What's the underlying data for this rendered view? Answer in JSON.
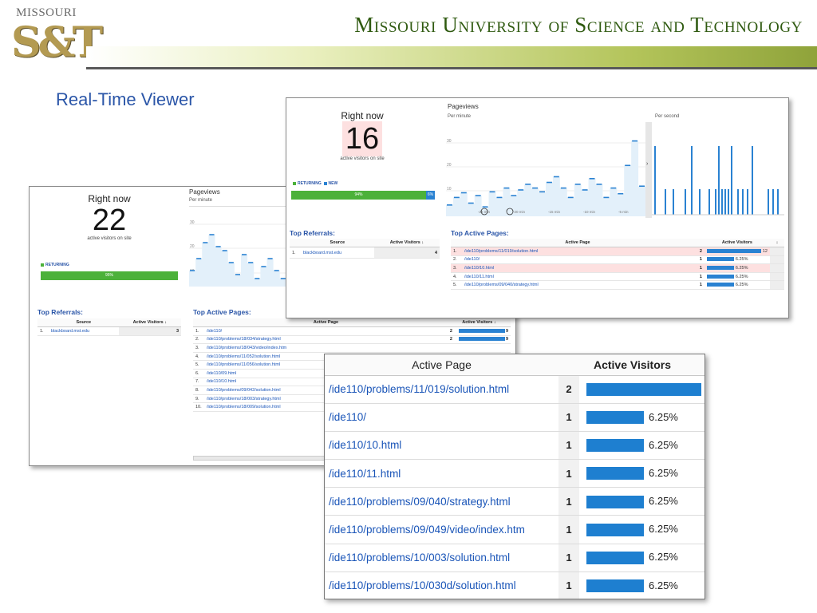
{
  "header": {
    "logo_top": "MISSOURI",
    "logo_main": "S&T",
    "university": "Missouri University of Science and Technology",
    "slide_title": "Real-Time Viewer"
  },
  "colors": {
    "accent_blue": "#2a82d2",
    "returning_green": "#4cb13a",
    "title_blue": "#2b56a8",
    "highlight_pink": "#fde0e0"
  },
  "left_shot": {
    "right_now_label": "Right now",
    "active_count": "22",
    "active_sub": "active visitors on site",
    "legend_returning": "RETURNING",
    "returning_pct": "95%",
    "returning_fraction": 0.95,
    "pageviews_title": "Pageviews",
    "per_minute": "Per minute",
    "y_ticks": [
      "30",
      "20",
      "10"
    ],
    "referrals_title": "Top Referrals:",
    "referrals_headers": [
      "Source",
      "Active Visitors ↓"
    ],
    "referrals": [
      {
        "idx": "1.",
        "source": "blackboard.mst.edu",
        "count": "3"
      }
    ],
    "pages_title": "Top Active Pages:",
    "pages_headers": [
      "Active Page",
      "Active Visitors ↓"
    ],
    "pages": [
      {
        "idx": "1.",
        "page": "/ide110/",
        "count": "2",
        "pct": "9",
        "fraction": 0.9
      },
      {
        "idx": "2.",
        "page": "/ide110/problems/18/034/strategy.html",
        "count": "2",
        "pct": "9",
        "fraction": 0.9
      },
      {
        "idx": "3.",
        "page": "/ide110/problems/18/043/video/index.htm",
        "count": "",
        "pct": "",
        "fraction": 0
      },
      {
        "idx": "4.",
        "page": "/ide110/problems/11/052/solution.html",
        "count": "",
        "pct": "",
        "fraction": 0
      },
      {
        "idx": "5.",
        "page": "/ide110/problems/11/056/solution.html",
        "count": "",
        "pct": "",
        "fraction": 0
      },
      {
        "idx": "6.",
        "page": "/ide110/09.html",
        "count": "",
        "pct": "",
        "fraction": 0
      },
      {
        "idx": "7.",
        "page": "/ide110/10.html",
        "count": "",
        "pct": "",
        "fraction": 0
      },
      {
        "idx": "8.",
        "page": "/ide110/problems/09/042/solution.html",
        "count": "",
        "pct": "",
        "fraction": 0
      },
      {
        "idx": "9.",
        "page": "/ide110/problems/18/003/strategy.html",
        "count": "",
        "pct": "",
        "fraction": 0
      },
      {
        "idx": "10.",
        "page": "/ide110/problems/18/009/solution.html",
        "count": "",
        "pct": "",
        "fraction": 0
      }
    ]
  },
  "right_shot": {
    "right_now_label": "Right now",
    "active_count": "16",
    "active_sub": "active visitors on site",
    "legend_returning": "RETURNING",
    "legend_new": "NEW",
    "returning_pct": "94%",
    "new_pct": "6%",
    "returning_fraction": 0.94,
    "pageviews_title": "Pageviews",
    "per_minute": "Per minute",
    "per_second": "Per second",
    "y_ticks": [
      "30",
      "20",
      "10"
    ],
    "x_ticks": [
      "-25 min",
      "-20 min",
      "-15 min",
      "-10 min",
      "-5 min"
    ],
    "referrals_title": "Top Referrals:",
    "referrals_headers": [
      "Source",
      "Active Visitors ↓"
    ],
    "referrals": [
      {
        "idx": "1.",
        "source": "blackboard.mst.edu",
        "count": "4"
      }
    ],
    "pages_title": "Top Active Pages:",
    "pages_headers": [
      "Active Page",
      "Active Visitors",
      "↓"
    ],
    "pages": [
      {
        "idx": "1.",
        "page": "/ide110/problems/11/019/solution.html",
        "count": "2",
        "pct": "12",
        "fraction": 1.0,
        "highlight": true
      },
      {
        "idx": "2.",
        "page": "/ide110/",
        "count": "1",
        "pct": "6.25%",
        "fraction": 0.5,
        "highlight": false
      },
      {
        "idx": "3.",
        "page": "/ide110/10.html",
        "count": "1",
        "pct": "6.25%",
        "fraction": 0.5,
        "highlight": true
      },
      {
        "idx": "4.",
        "page": "/ide110/11.html",
        "count": "1",
        "pct": "6.25%",
        "fraction": 0.5,
        "highlight": false
      },
      {
        "idx": "5.",
        "page": "/ide110/problems/09/040/strategy.html",
        "count": "1",
        "pct": "6.25%",
        "fraction": 0.5,
        "highlight": false
      }
    ]
  },
  "zoom": {
    "headers": [
      "Active Page",
      "Active Visitors"
    ],
    "rows": [
      {
        "page": "/ide110/problems/11/019/solution.html",
        "count": "2",
        "pct": "",
        "fraction": 1.0
      },
      {
        "page": "/ide110/",
        "count": "1",
        "pct": "6.25%",
        "fraction": 0.5
      },
      {
        "page": "/ide110/10.html",
        "count": "1",
        "pct": "6.25%",
        "fraction": 0.5
      },
      {
        "page": "/ide110/11.html",
        "count": "1",
        "pct": "6.25%",
        "fraction": 0.5
      },
      {
        "page": "/ide110/problems/09/040/strategy.html",
        "count": "1",
        "pct": "6.25%",
        "fraction": 0.5
      },
      {
        "page": "/ide110/problems/09/049/video/index.htm",
        "count": "1",
        "pct": "6.25%",
        "fraction": 0.5
      },
      {
        "page": "/ide110/problems/10/003/solution.html",
        "count": "1",
        "pct": "6.25%",
        "fraction": 0.5
      },
      {
        "page": "/ide110/problems/10/030d/solution.html",
        "count": "1",
        "pct": "6.25%",
        "fraction": 0.5
      }
    ]
  }
}
